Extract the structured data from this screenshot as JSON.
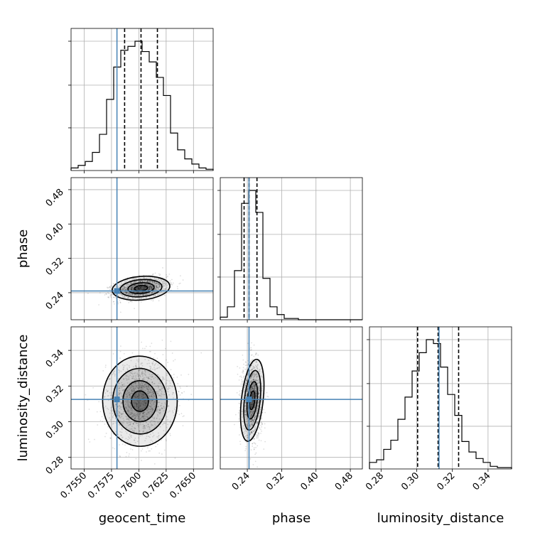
{
  "chart_data": {
    "type": "corner",
    "parameters": [
      "geocent_time",
      "phase",
      "luminosity_distance"
    ],
    "axis_labels": {
      "x_geocent_time": "geocent_time",
      "x_phase": "phase",
      "x_luminosity_distance": "luminosity_distance",
      "y_phase": "phase",
      "y_luminosity_distance": "luminosity_distance"
    },
    "ranges": {
      "geocent_time": [
        0.7538,
        0.7668
      ],
      "phase": [
        0.177,
        0.508
      ],
      "luminosity_distance": [
        0.2735,
        0.3532
      ]
    },
    "ticks": {
      "geocent_time": [
        0.755,
        0.7575,
        0.76,
        0.7625,
        0.765
      ],
      "phase": [
        0.24,
        0.32,
        0.4,
        0.48
      ],
      "luminosity_distance": [
        0.28,
        0.3,
        0.32,
        0.34
      ]
    },
    "tick_labels": {
      "geocent_time": [
        "0.7550",
        "0.7575",
        "0.7600",
        "0.7625",
        "0.7650"
      ],
      "phase": [
        "0.24",
        "0.32",
        "0.40",
        "0.48"
      ],
      "luminosity_distance": [
        "0.28",
        "0.30",
        "0.32",
        "0.34"
      ]
    },
    "truths": {
      "geocent_time": 0.758,
      "phase": 0.244,
      "luminosity_distance": 0.3125
    },
    "quantiles": {
      "geocent_time": [
        0.7587,
        0.7602,
        0.7617
      ],
      "phase": [
        0.2325,
        0.244,
        0.2625
      ],
      "luminosity_distance": [
        0.3005,
        0.312,
        0.3235
      ]
    },
    "histograms": {
      "geocent_time": {
        "edges_start": 0.7538,
        "bin_width": 0.00065,
        "counts": [
          2,
          4,
          7,
          14,
          28,
          55,
          80,
          93,
          96,
          100,
          92,
          84,
          72,
          58,
          29,
          16,
          9,
          5,
          2,
          1
        ]
      },
      "phase": {
        "edges_start": 0.177,
        "bin_width": 0.01655,
        "counts": [
          2,
          10,
          38,
          90,
          100,
          83,
          32,
          10,
          4,
          1,
          1,
          0,
          0,
          0,
          0,
          0,
          0,
          0,
          0,
          0
        ]
      },
      "luminosity_distance": {
        "edges_start": 0.2735,
        "bin_width": 0.003985,
        "counts": [
          5,
          7,
          15,
          22,
          38,
          55,
          75,
          89,
          99,
          96,
          78,
          57,
          41,
          21,
          13,
          8,
          5,
          2,
          1,
          1
        ]
      }
    },
    "joint": [
      {
        "x": "geocent_time",
        "y": "phase",
        "mean": [
          0.7602,
          0.2505
        ],
        "sd": [
          0.0012,
          0.0125
        ],
        "corr": 0.35,
        "n_points": 1400
      },
      {
        "x": "geocent_time",
        "y": "luminosity_distance",
        "mean": [
          0.7601,
          0.3115
        ],
        "sd": [
          0.00155,
          0.0115
        ],
        "corr": 0.05,
        "n_points": 1500
      },
      {
        "x": "phase",
        "y": "luminosity_distance",
        "mean": [
          0.2515,
          0.312
        ],
        "sd": [
          0.0115,
          0.0105
        ],
        "corr": -0.05,
        "n_points": 1400
      }
    ],
    "truth_color": "#4682b4",
    "hist_color": "#000000",
    "grid": true
  }
}
